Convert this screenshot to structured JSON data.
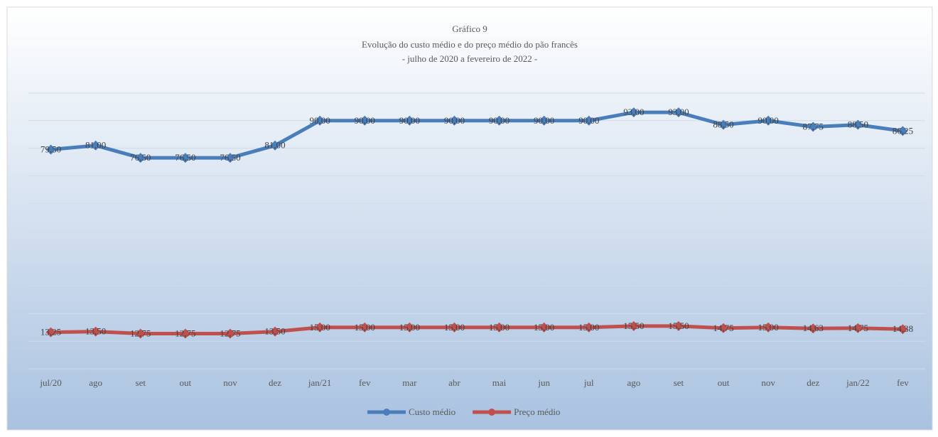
{
  "chart_data": {
    "type": "line",
    "title": "Gráfico 9",
    "subtitle": "Evolução do custo médio e do preço médio do pão francês",
    "subtitle2": "-  julho de 2020 a fevereiro de 2022 -",
    "categories": [
      "jul/20",
      "ago",
      "set",
      "out",
      "nov",
      "dez",
      "jan/21",
      "fev",
      "mar",
      "abr",
      "mai",
      "jun",
      "jul",
      "ago",
      "set",
      "out",
      "nov",
      "dez",
      "jan/22",
      "fev"
    ],
    "series": [
      {
        "name": "Custo médio",
        "color": "#4a7ebb",
        "values": [
          79.5,
          81,
          76.5,
          76.5,
          76.5,
          81,
          90,
          90,
          90,
          90,
          90,
          90,
          90,
          93,
          93,
          88.5,
          90,
          87.75,
          88.5,
          86.25
        ],
        "value_labels": [
          "79,50",
          "81,00",
          "76,50",
          "76,50",
          "76,50",
          "81,00",
          "90,00",
          "90,00",
          "90,00",
          "90,00",
          "90,00",
          "90,00",
          "90,00",
          "93,00",
          "93,00",
          "88,50",
          "90,00",
          "87,75",
          "88,50",
          "86,25"
        ]
      },
      {
        "name": "Preço médio",
        "color": "#c0504d",
        "values": [
          13.25,
          13.5,
          12.75,
          12.75,
          12.75,
          13.5,
          15,
          15,
          15,
          15,
          15,
          15,
          15,
          15.5,
          15.5,
          14.75,
          15,
          14.63,
          14.75,
          14.38
        ],
        "value_labels": [
          "13,25",
          "13,50",
          "12,75",
          "12,75",
          "12,75",
          "13,50",
          "15,00",
          "15,00",
          "15,00",
          "15,00",
          "15,00",
          "15,00",
          "15,00",
          "15,50",
          "15,50",
          "14,75",
          "15,00",
          "14,63",
          "14,75",
          "14,38"
        ]
      }
    ],
    "ylim": [
      0,
      100
    ],
    "yticks": [
      0,
      10,
      20,
      30,
      40,
      50,
      60,
      70,
      80,
      90,
      100
    ],
    "grid": true,
    "legend": "bottom"
  }
}
